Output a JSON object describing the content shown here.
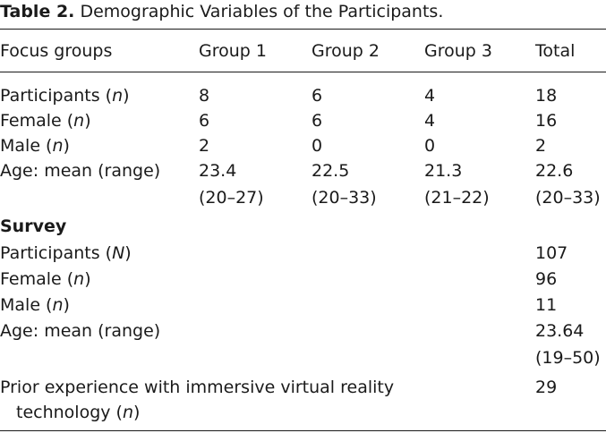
{
  "caption": {
    "label": "Table 2.",
    "title": "Demographic Variables of the Participants."
  },
  "header": {
    "col0": "Focus groups",
    "col1": "Group 1",
    "col2": "Group 2",
    "col3": "Group 3",
    "col4": "Total"
  },
  "focus_rows": [
    {
      "label_pre": "Participants (",
      "label_var": "n",
      "label_post": ")",
      "g1": "8",
      "g2": "6",
      "g3": "4",
      "total": "18"
    },
    {
      "label_pre": "Female (",
      "label_var": "n",
      "label_post": ")",
      "g1": "6",
      "g2": "6",
      "g3": "4",
      "total": "16"
    },
    {
      "label_pre": "Male (",
      "label_var": "n",
      "label_post": ")",
      "g1": "2",
      "g2": "0",
      "g3": "0",
      "total": "2"
    },
    {
      "label_pre": "Age: mean (range)",
      "g1_a": "23.4",
      "g1_b": "(20–27)",
      "g2_a": "22.5",
      "g2_b": "(20–33)",
      "g3_a": "21.3",
      "g3_b": "(21–22)",
      "total_a": "22.6",
      "total_b": "(20–33)"
    }
  ],
  "survey": {
    "heading": "Survey",
    "rows": [
      {
        "label_pre": "Participants (",
        "label_var": "N",
        "label_post": ")",
        "total": "107"
      },
      {
        "label_pre": "Female (",
        "label_var": "n",
        "label_post": ")",
        "total": "96"
      },
      {
        "label_pre": "Male (",
        "label_var": "n",
        "label_post": ")",
        "total": "11"
      },
      {
        "label_pre": "Age: mean (range)",
        "total_a": "23.64",
        "total_b": "(19–50)"
      },
      {
        "label_line1": "Prior experience with immersive virtual reality",
        "label_line2_pre": "technology (",
        "label_var": "n",
        "label_post": ")",
        "total": "29"
      }
    ]
  }
}
